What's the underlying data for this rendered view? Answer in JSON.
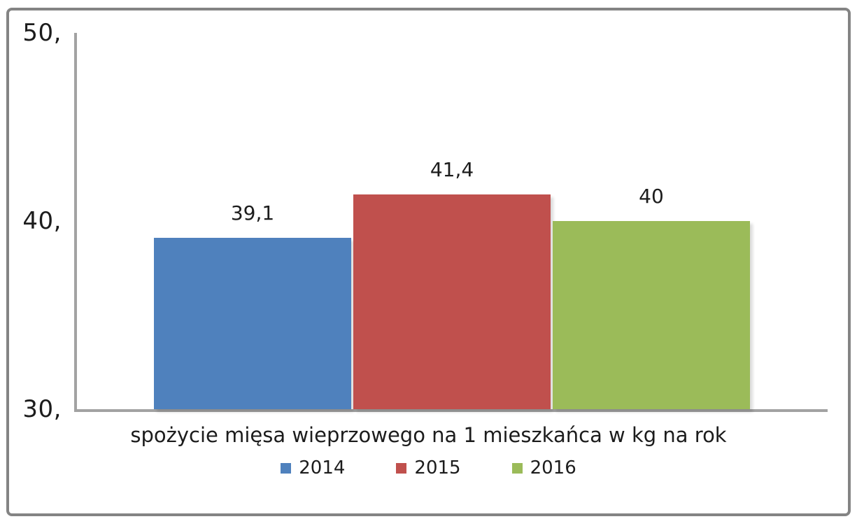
{
  "chart_data": {
    "type": "bar",
    "title": "",
    "xlabel": "spożycie mięsa wieprzowego na 1 mieszkańca w kg na rok",
    "ylabel": "",
    "ylim": [
      30,
      50
    ],
    "yticks": [
      {
        "value": 30,
        "label": "30,"
      },
      {
        "value": 40,
        "label": "40,"
      },
      {
        "value": 50,
        "label": "50,"
      }
    ],
    "grid": false,
    "legend_position": "bottom",
    "categories": [
      "spożycie mięsa wieprzowego na 1 mieszkańca w kg na rok"
    ],
    "series": [
      {
        "name": "2014",
        "value": 39.1,
        "value_label": "39,1",
        "color": "#4f81bd"
      },
      {
        "name": "2015",
        "value": 41.4,
        "value_label": "41,4",
        "color": "#c0504d"
      },
      {
        "name": "2016",
        "value": 40.0,
        "value_label": "40",
        "color": "#9bbb59"
      }
    ]
  },
  "colors": {
    "axis_line": "#a2a2a2",
    "frame_border": "#848484",
    "text": "#1c1c1c",
    "background": "#ffffff"
  }
}
